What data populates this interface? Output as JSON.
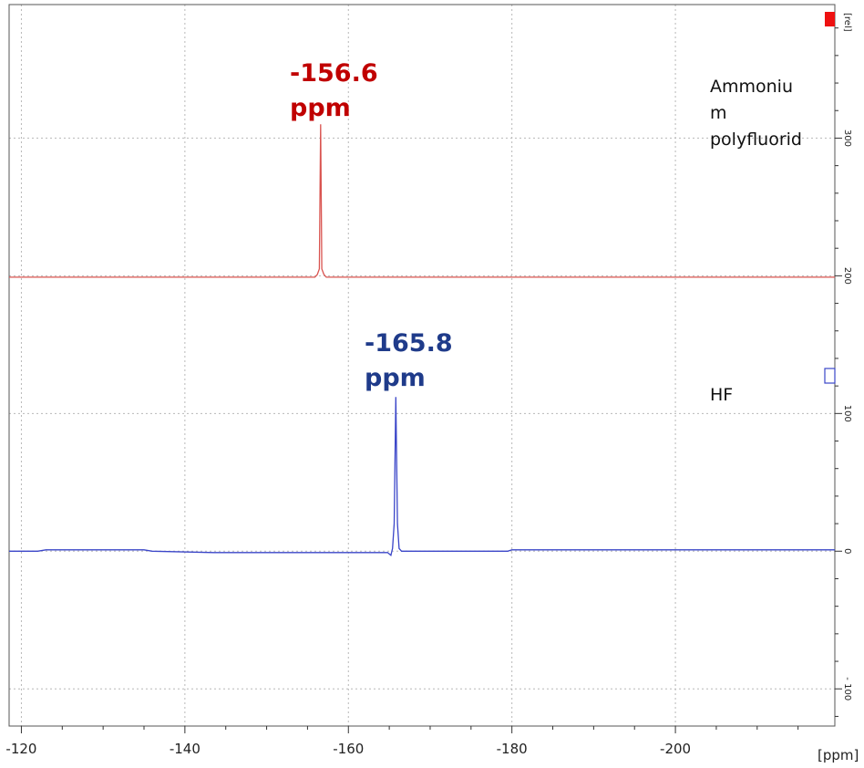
{
  "chart_data": {
    "type": "line",
    "xlabel_units": "[ppm]",
    "ylabel_units": "[rel]",
    "xlim": [
      -118.5,
      -219.5
    ],
    "ylim": [
      -127,
      397
    ],
    "x_ticks": [
      -120,
      -140,
      -160,
      -180,
      -200
    ],
    "x_tick_labels": [
      "-120",
      "-140",
      "-160",
      "-180",
      "-200"
    ],
    "y_ticks": [
      0,
      100,
      200,
      300
    ],
    "y_tick_labels": [
      "0",
      "100",
      "200",
      "300"
    ],
    "y_tick_extra_label": "- 100",
    "grid": true,
    "series": [
      {
        "name": "Ammonium polyfluorid",
        "color": "#d9534f",
        "baseline": 199,
        "peak_x": -156.6,
        "peak_y": 310,
        "points": [
          [
            -118.5,
            199
          ],
          [
            -155.9,
            199
          ],
          [
            -156.2,
            201
          ],
          [
            -156.45,
            205
          ],
          [
            -156.6,
            310
          ],
          [
            -156.75,
            205
          ],
          [
            -157.0,
            201
          ],
          [
            -157.3,
            199
          ],
          [
            -219.5,
            199
          ]
        ]
      },
      {
        "name": "HF",
        "color": "#3a45c8",
        "baseline": 0,
        "peak_x": -165.8,
        "peak_y": 112,
        "points": [
          [
            -118.5,
            0
          ],
          [
            -122,
            0
          ],
          [
            -123,
            1
          ],
          [
            -135,
            1
          ],
          [
            -136,
            0
          ],
          [
            -143.5,
            -1
          ],
          [
            -144,
            -1
          ],
          [
            -162,
            -1
          ],
          [
            -164.8,
            -1
          ],
          [
            -165.2,
            -3
          ],
          [
            -165.4,
            2
          ],
          [
            -165.6,
            20
          ],
          [
            -165.8,
            112
          ],
          [
            -166.0,
            20
          ],
          [
            -166.2,
            2
          ],
          [
            -166.5,
            0
          ],
          [
            -179.5,
            0
          ],
          [
            -180,
            1
          ],
          [
            -219.5,
            1
          ]
        ]
      }
    ],
    "annotations": [
      {
        "line1": "-156.6",
        "line2": "ppm",
        "color": "#c00000"
      },
      {
        "line1": "-165.8",
        "line2": "ppm",
        "color": "#1f3b8a"
      }
    ],
    "labels": {
      "ammonium_line1": "Ammoniu",
      "ammonium_line2": "m",
      "ammonium_line3": "polyfluorid",
      "hf": "HF"
    }
  }
}
